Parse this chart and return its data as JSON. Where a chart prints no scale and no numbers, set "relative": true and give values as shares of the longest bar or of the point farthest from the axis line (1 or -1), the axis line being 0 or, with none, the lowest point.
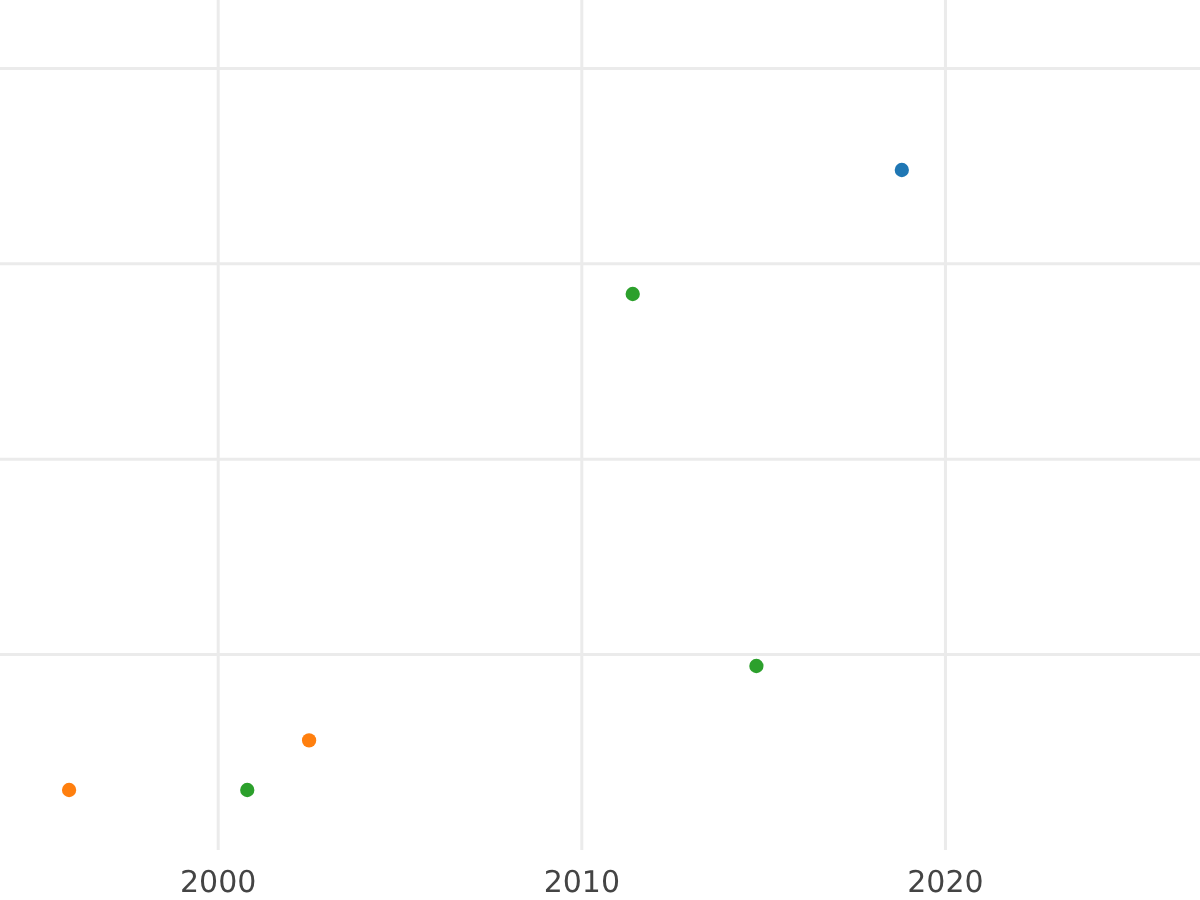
{
  "chart_data": {
    "type": "scatter",
    "relative": true,
    "grid": true,
    "marker": "circle",
    "tick_labels": "x",
    "xlim": [
      1994,
      2027
    ],
    "xticks": [
      2000,
      2010,
      2020
    ],
    "series": [
      {
        "color": "#ff7f0e",
        "x": [
          1995.9,
          2002.5
        ],
        "values": [
          0,
          0.08
        ]
      },
      {
        "color": "#2ca02c",
        "x": [
          2000.8,
          2011.4,
          2014.8
        ],
        "values": [
          0,
          0.8,
          0.2
        ]
      },
      {
        "color": "#1f77b4",
        "x": [
          2018.8
        ],
        "values": [
          1
        ]
      }
    ]
  }
}
